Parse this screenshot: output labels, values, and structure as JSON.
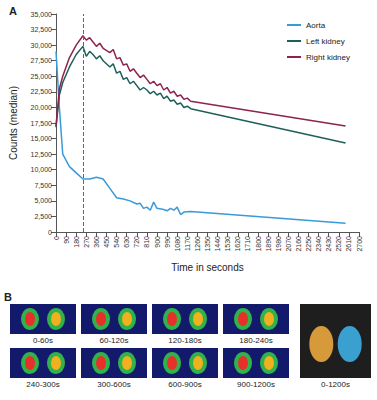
{
  "chart_data": {
    "type": "line",
    "panel": "A",
    "x_label": "Time in seconds",
    "y_label": "Counts (median)",
    "xlim": [
      0,
      2700
    ],
    "xticks": [
      0,
      90,
      180,
      270,
      360,
      450,
      540,
      630,
      720,
      810,
      900,
      990,
      1080,
      1170,
      1260,
      1350,
      1440,
      1530,
      1620,
      1710,
      1800,
      1890,
      1980,
      2070,
      2160,
      2250,
      2340,
      2430,
      2520,
      2610,
      2700
    ],
    "ylim": [
      0,
      35000
    ],
    "yticks": [
      0,
      {
        "value": 2500,
        "label": "2,500"
      },
      {
        "value": 5000,
        "label": "5,000"
      },
      {
        "value": 7500,
        "label": "7,500"
      },
      {
        "value": 10000,
        "label": "10,000"
      },
      {
        "value": 12500,
        "label": "12,500"
      },
      {
        "value": 15000,
        "label": "15,000"
      },
      {
        "value": 17500,
        "label": "17,500"
      },
      {
        "value": 20000,
        "label": "20,000"
      },
      {
        "value": 22500,
        "label": "22,500"
      },
      {
        "value": 25000,
        "label": "25,000"
      },
      {
        "value": 27500,
        "label": "27,500"
      },
      {
        "value": 30000,
        "label": "30,000"
      },
      {
        "value": 32500,
        "label": "32,500"
      },
      {
        "value": 35000,
        "label": "35,000"
      }
    ],
    "grid": false,
    "legend": "upper right",
    "reference_line": {
      "x": 240,
      "line_style": "dashed"
    },
    "series": [
      {
        "name": "Aorta",
        "color": "#3a9ad9",
        "x": [
          0,
          30,
          60,
          120,
          180,
          240,
          300,
          360,
          420,
          480,
          540,
          600,
          660,
          720,
          750,
          780,
          810,
          840,
          870,
          900,
          960,
          990,
          1020,
          1050,
          1080,
          1110,
          1140,
          1200,
          2580
        ],
        "values": [
          29000,
          20000,
          12500,
          10500,
          9500,
          8500,
          8500,
          8800,
          8500,
          7000,
          5500,
          5300,
          5000,
          4500,
          4600,
          3800,
          4000,
          3500,
          4800,
          3800,
          3600,
          3400,
          3800,
          3500,
          4000,
          2800,
          3200,
          3300,
          1400
        ]
      },
      {
        "name": "Left kidney",
        "color": "#1f5f5b",
        "x": [
          0,
          30,
          60,
          120,
          180,
          240,
          270,
          300,
          330,
          360,
          390,
          420,
          480,
          510,
          540,
          570,
          600,
          630,
          660,
          690,
          720,
          750,
          780,
          810,
          840,
          870,
          900,
          930,
          960,
          990,
          1020,
          1050,
          1080,
          1110,
          1140,
          1170,
          1200,
          2580
        ],
        "values": [
          16800,
          22000,
          24000,
          26500,
          28500,
          29800,
          28200,
          29000,
          28500,
          27800,
          28300,
          27500,
          26500,
          27000,
          25500,
          25800,
          24500,
          24800,
          23800,
          24200,
          23500,
          22800,
          23200,
          22800,
          22200,
          22600,
          22000,
          22300,
          21400,
          21800,
          21000,
          21200,
          20500,
          20700,
          20000,
          20200,
          19800,
          14300
        ]
      },
      {
        "name": "Right kidney",
        "color": "#8e2350",
        "x": [
          0,
          30,
          60,
          120,
          180,
          240,
          270,
          300,
          330,
          360,
          390,
          420,
          480,
          510,
          540,
          570,
          600,
          630,
          660,
          690,
          720,
          750,
          780,
          810,
          840,
          870,
          900,
          930,
          960,
          990,
          1020,
          1050,
          1080,
          1110,
          1140,
          1170,
          1200,
          2580
        ],
        "values": [
          17000,
          23000,
          25000,
          28000,
          30000,
          31500,
          30800,
          31200,
          30500,
          29800,
          30300,
          29500,
          28800,
          29300,
          27800,
          28000,
          26800,
          27000,
          25800,
          26200,
          25500,
          24800,
          25200,
          24500,
          23800,
          24200,
          23500,
          23800,
          22800,
          23200,
          22300,
          22600,
          21800,
          22000,
          21300,
          21500,
          21000,
          17000
        ]
      }
    ]
  },
  "panel_b": {
    "label": "B",
    "frames": [
      "0-60s",
      "60-120s",
      "120-180s",
      "180-240s",
      "240-300s",
      "300-600s",
      "600-900s",
      "900-1200s"
    ],
    "summary_frame": "0-1200s"
  }
}
